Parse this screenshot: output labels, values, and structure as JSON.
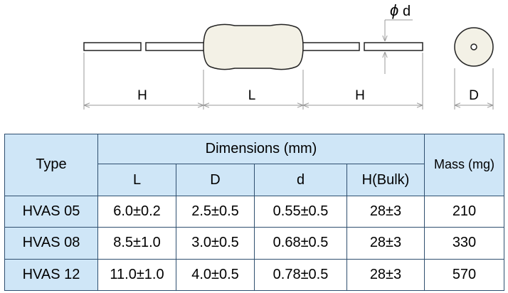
{
  "diagram": {
    "label_h_left": "H",
    "label_l": "L",
    "label_h_right": "H",
    "label_d": "D",
    "label_phi": "ϕ",
    "label_lead_d": "d"
  },
  "table": {
    "header_type": "Type",
    "header_dimensions": "Dimensions (mm)",
    "header_mass": "Mass (mg)",
    "sub_headers": [
      "L",
      "D",
      "d",
      "H(Bulk)"
    ],
    "rows": [
      {
        "type": "HVAS 05",
        "L": "6.0±0.2",
        "D": "2.5±0.5",
        "d": "0.55±0.5",
        "H": "28±3",
        "mass": "210"
      },
      {
        "type": "HVAS 08",
        "L": "8.5±1.0",
        "D": "3.0±0.5",
        "d": "0.68±0.5",
        "H": "28±3",
        "mass": "330"
      },
      {
        "type": "HVAS 12",
        "L": "11.0±1.0",
        "D": "4.0±0.5",
        "d": "0.78±0.5",
        "H": "28±3",
        "mass": "570"
      }
    ]
  },
  "colors": {
    "header_bg": "#cfe6f7",
    "border": "#2f4f6f",
    "body_fill": "#f3f1e6"
  }
}
